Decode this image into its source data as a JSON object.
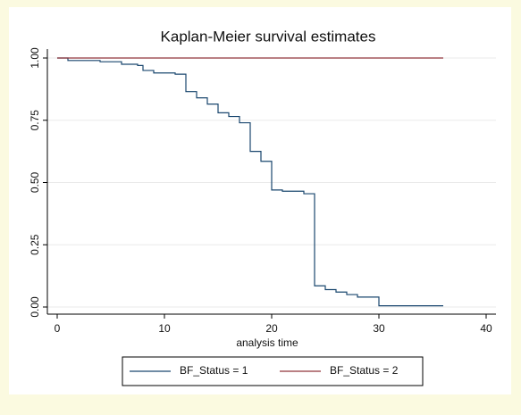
{
  "chart_data": {
    "type": "step",
    "title": "Kaplan-Meier survival estimates",
    "xlabel": "analysis time",
    "series": [
      {
        "name": "BF_Status = 1",
        "color": "#1a476f",
        "x": [
          0,
          1,
          4,
          6,
          7.5,
          8,
          9,
          11,
          12,
          13,
          14,
          15,
          16,
          17,
          18,
          19,
          20,
          21,
          23,
          24,
          25,
          26,
          27,
          28,
          30,
          36
        ],
        "values": [
          1,
          0.99,
          0.985,
          0.975,
          0.97,
          0.95,
          0.94,
          0.935,
          0.865,
          0.84,
          0.815,
          0.78,
          0.765,
          0.74,
          0.625,
          0.585,
          0.47,
          0.465,
          0.455,
          0.085,
          0.07,
          0.06,
          0.05,
          0.04,
          0.005,
          0.005
        ]
      },
      {
        "name": "BF_Status = 2",
        "color": "#90353b",
        "x": [
          0,
          36
        ],
        "values": [
          1,
          1
        ]
      }
    ],
    "xlim": [
      0,
      40
    ],
    "xticks": [
      0,
      10,
      20,
      30,
      40
    ],
    "ylim": [
      0,
      1
    ],
    "yticks": [
      {
        "value": 0,
        "label": "0.00"
      },
      {
        "value": 0.25,
        "label": "0.25"
      },
      {
        "value": 0.5,
        "label": "0.50"
      },
      {
        "value": 0.75,
        "label": "0.75"
      },
      {
        "value": 1,
        "label": "1.00"
      }
    ],
    "grid": true,
    "legend": "bottom"
  }
}
